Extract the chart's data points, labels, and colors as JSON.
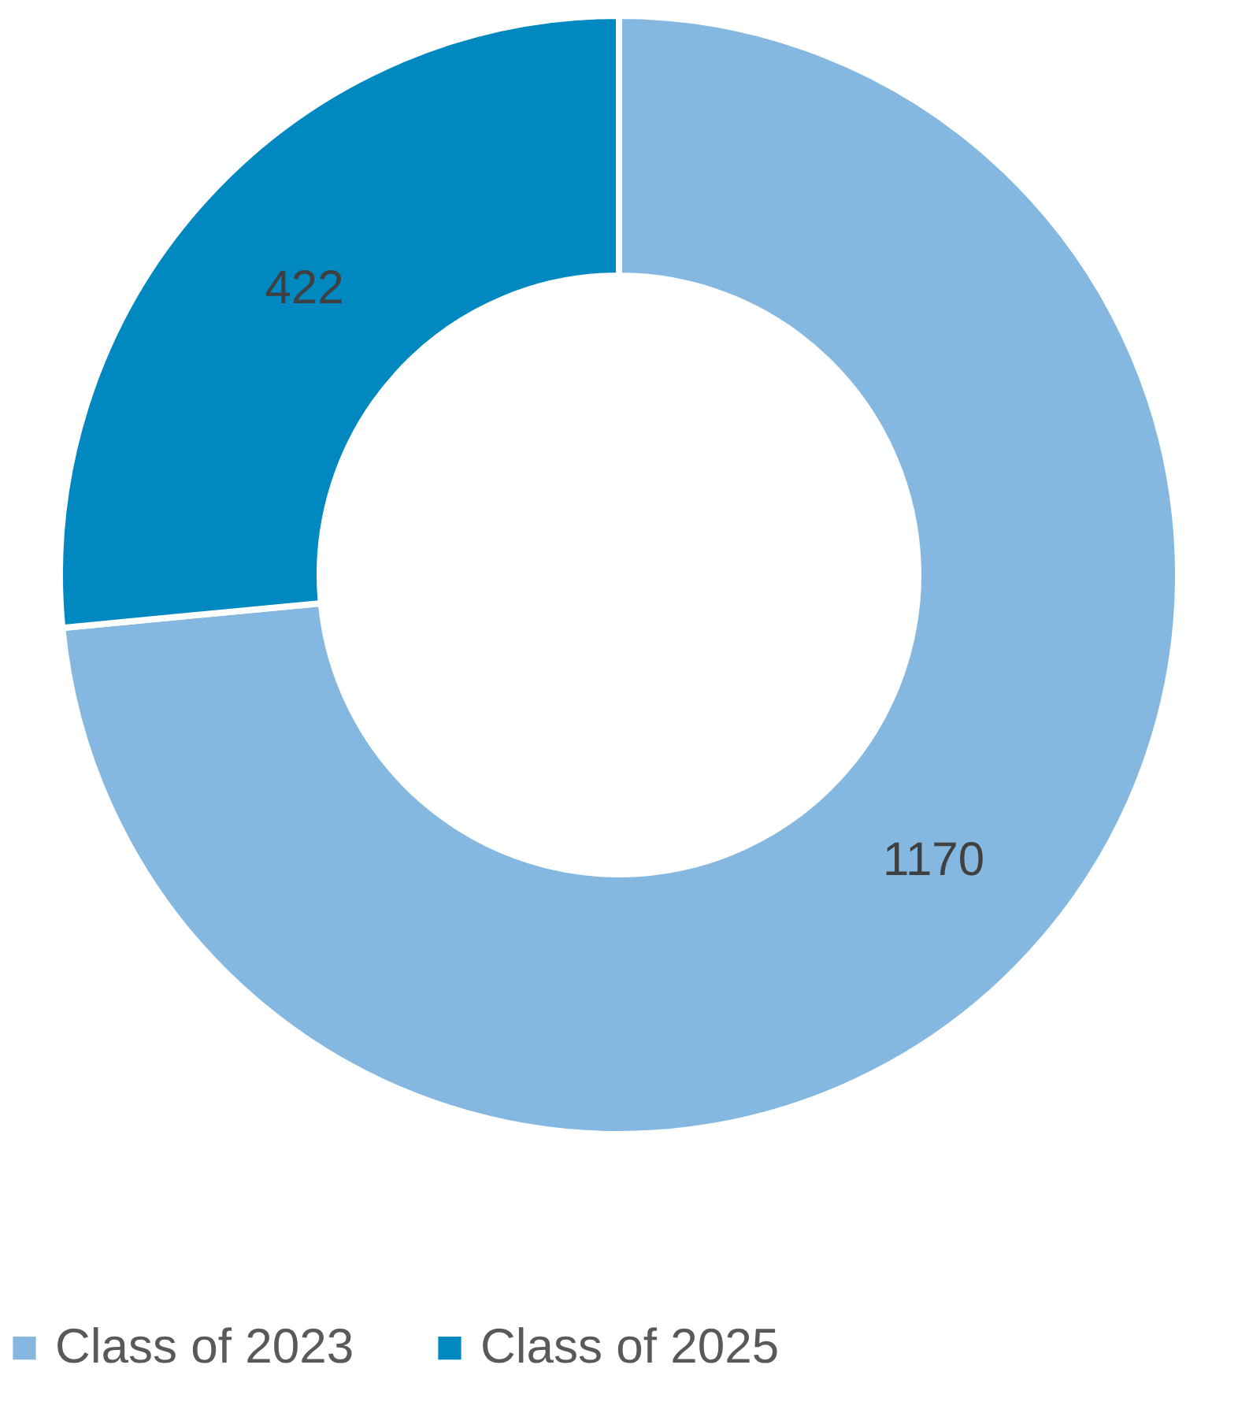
{
  "chart_data": {
    "type": "donut",
    "categories": [
      "Class of 2023",
      "Class of 2025"
    ],
    "values": [
      1170,
      422
    ],
    "colors": [
      "#85b8e0",
      "#0088c0"
    ],
    "data_labels": true,
    "legend": "bottom"
  }
}
